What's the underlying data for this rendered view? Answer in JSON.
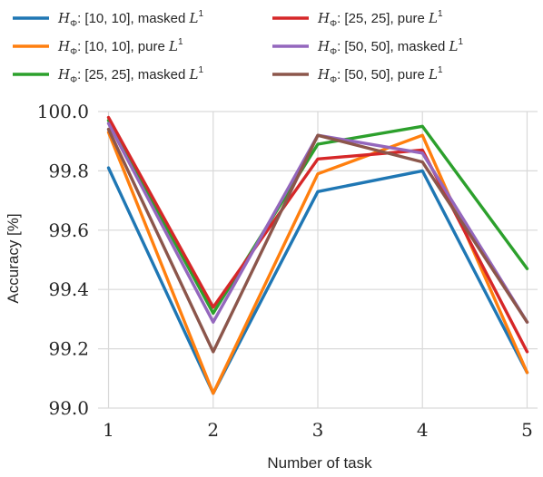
{
  "chart_data": {
    "type": "line",
    "title": "",
    "xlabel": "Number of task",
    "ylabel": "Accuracy [%]",
    "x": [
      1,
      2,
      3,
      4,
      5
    ],
    "xlim": [
      0.9,
      5.1
    ],
    "ylim": [
      99.0,
      100.0
    ],
    "yticks": [
      "99.0",
      "99.2",
      "99.4",
      "99.6",
      "99.8",
      "100.0"
    ],
    "xticks": [
      "1",
      "2",
      "3",
      "4",
      "5"
    ],
    "grid": true,
    "legend": "top, outside, 3 rows x 2 columns",
    "series": [
      {
        "name_prefix": "H",
        "name_sub": "Φ",
        "name_mid": ": [10, 10], masked ",
        "name_math": "L",
        "name_sup": "1",
        "color": "#1f77b4",
        "values": [
          99.81,
          99.05,
          99.73,
          99.8,
          99.12
        ]
      },
      {
        "name_prefix": "H",
        "name_sub": "Φ",
        "name_mid": ": [10, 10], pure ",
        "name_math": "L",
        "name_sup": "1",
        "color": "#ff7f0e",
        "values": [
          99.93,
          99.05,
          99.79,
          99.92,
          99.12
        ]
      },
      {
        "name_prefix": "H",
        "name_sub": "Φ",
        "name_mid": ": [25, 25], masked ",
        "name_math": "L",
        "name_sup": "1",
        "color": "#2ca02c",
        "values": [
          99.97,
          99.32,
          99.89,
          99.95,
          99.47
        ]
      },
      {
        "name_prefix": "H",
        "name_sub": "Φ",
        "name_mid": ": [25, 25], pure ",
        "name_math": "L",
        "name_sup": "1",
        "color": "#d62728",
        "values": [
          99.98,
          99.34,
          99.84,
          99.87,
          99.19
        ]
      },
      {
        "name_prefix": "H",
        "name_sub": "Φ",
        "name_mid": ": [50, 50], masked ",
        "name_math": "L",
        "name_sup": "1",
        "color": "#9467bd",
        "values": [
          99.96,
          99.29,
          99.92,
          99.86,
          99.29
        ]
      },
      {
        "name_prefix": "H",
        "name_sub": "Φ",
        "name_mid": ": [50, 50], pure ",
        "name_math": "L",
        "name_sup": "1",
        "color": "#8c564b",
        "values": [
          99.94,
          99.19,
          99.92,
          99.83,
          99.29
        ]
      }
    ]
  }
}
